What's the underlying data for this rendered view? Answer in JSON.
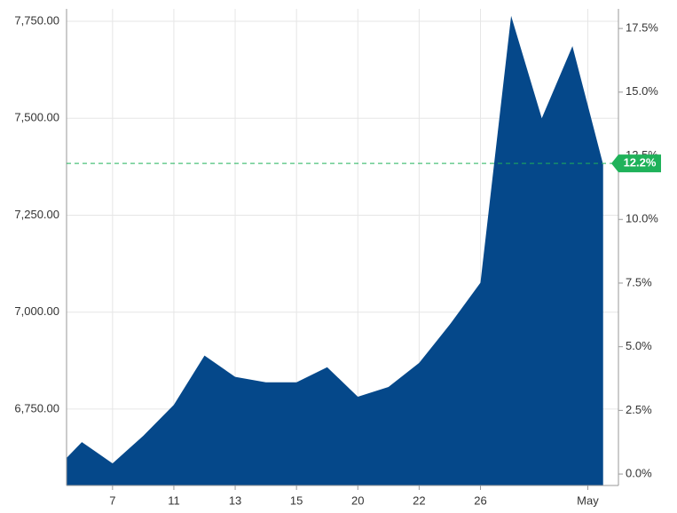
{
  "chart_data": {
    "type": "area",
    "x": [
      -0.5,
      0,
      1,
      2,
      3,
      4,
      5,
      6,
      7,
      8,
      9,
      10,
      11,
      12,
      13,
      14,
      15,
      16,
      17
    ],
    "series": [
      {
        "color": "#05488a",
        "values": [
          6624,
          6665,
          6610,
          6681,
          6761,
          6888,
          6833,
          6819,
          6819,
          6858,
          6782,
          6807,
          6869,
          6968,
          7076,
          7764,
          7500,
          7686,
          7381
        ]
      }
    ],
    "xlim": [
      -0.5,
      17.5
    ],
    "xticks": [
      {
        "value": 1,
        "label": "7"
      },
      {
        "value": 3,
        "label": "11"
      },
      {
        "value": 5,
        "label": "13"
      },
      {
        "value": 7,
        "label": "15"
      },
      {
        "value": 9,
        "label": "20"
      },
      {
        "value": 11,
        "label": "22"
      },
      {
        "value": 13,
        "label": "26"
      },
      {
        "value": 16.5,
        "label": "May"
      }
    ],
    "ylim": [
      6553,
      7782
    ],
    "yticks": [
      {
        "value": 7750,
        "label": "7,750.00"
      },
      {
        "value": 7500,
        "label": "7,500.00"
      },
      {
        "value": 7250,
        "label": "7,250.00"
      },
      {
        "value": 7000,
        "label": "7,000.00"
      },
      {
        "value": 6750,
        "label": "6,750.00"
      }
    ],
    "y2lim": [
      -0.45,
      18.27
    ],
    "y2ticks": [
      {
        "value": 17.5,
        "label": "17.5%"
      },
      {
        "value": 15,
        "label": "15.0%"
      },
      {
        "value": 12.5,
        "label": "12.5%"
      },
      {
        "value": 10,
        "label": "10.0%"
      },
      {
        "value": 7.5,
        "label": "7.5%"
      },
      {
        "value": 5,
        "label": "5.0%"
      },
      {
        "value": 2.5,
        "label": "2.5%"
      },
      {
        "value": 0,
        "label": "0.0%"
      }
    ],
    "reference_line": {
      "value": 12.2,
      "label": "12.2%",
      "axis": "y2",
      "color": "#1fb25a"
    },
    "grid": true
  }
}
